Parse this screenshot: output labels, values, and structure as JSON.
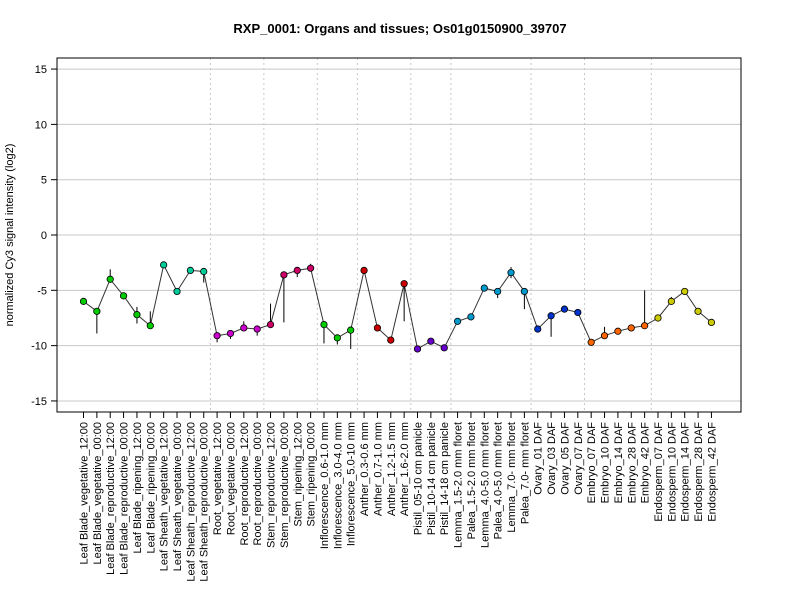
{
  "chart_data": {
    "type": "scatter",
    "title": "RXP_0001: Organs and tissues; Os01g0150900_39707",
    "ylabel": "normalized Cy3 signal intensity (log2)",
    "xlabel": "",
    "ylim": [
      -16,
      16
    ],
    "yticks": [
      -15,
      -10,
      -5,
      0,
      5,
      10,
      15
    ],
    "grid": true,
    "connected": true,
    "categories": [
      "Leaf Blade_vegetative_12:00",
      "Leaf Blade_vegetative_00:00",
      "Leaf Blade_reproductive_12:00",
      "Leaf Blade_reproductive_00:00",
      "Leaf Blade_ripening_12:00",
      "Leaf Blade_ripening_00:00",
      "Leaf Sheath_vegetative_12:00",
      "Leaf Sheath_vegetative_00:00",
      "Leaf Sheath_reproductive_12:00",
      "Leaf Sheath_reproductive_00:00",
      "Root_vegetative_12:00",
      "Root_vegetative_00:00",
      "Root_reproductive_12:00",
      "Root_reproductive_00:00",
      "Stem_reproductive_12:00",
      "Stem_reproductive_00:00",
      "Stem_ripening_12:00",
      "Stem_ripening_00:00",
      "Inflorescence_0.6-1.0 mm",
      "Inflorescence_3.0-4.0 mm",
      "Inflorescence_5.0-10 mm",
      "Anther_0.3-0.6 mm",
      "Anther_0.7-1.0 mm",
      "Anther_1.2-1.5 mm",
      "Anther_1.6-2.0 mm",
      "Pistil_05-10 cm panicle",
      "Pistil_10-14 cm panicle",
      "Pistil_14-18 cm panicle",
      "Lemma_1.5-2.0 mm floret",
      "Palea_1.5-2.0 mm floret",
      "Lemma_4.0-5.0 mm floret",
      "Palea_4.0-5.0 mm floret",
      "Lemma_7.0- mm floret",
      "Palea_7.0- mm floret",
      "Ovary_01 DAF",
      "Ovary_03 DAF",
      "Ovary_05 DAF",
      "Ovary_07 DAF",
      "Embryo_07 DAF",
      "Embryo_10 DAF",
      "Embryo_14 DAF",
      "Embryo_28 DAF",
      "Embryo_42 DAF",
      "Endosperm_07 DAF",
      "Endosperm_10 DAF",
      "Endosperm_14 DAF",
      "Endosperm_28 DAF",
      "Endosperm_42 DAF"
    ],
    "values": [
      -6.0,
      -6.9,
      -4.0,
      -5.5,
      -7.2,
      -8.2,
      -2.7,
      -5.1,
      -3.2,
      -3.3,
      -9.1,
      -8.9,
      -8.4,
      -8.5,
      -8.1,
      -3.6,
      -3.2,
      -3.0,
      -8.1,
      -9.3,
      -8.6,
      -3.2,
      -8.4,
      -9.5,
      -4.4,
      -10.3,
      -9.6,
      -10.2,
      -7.8,
      -7.4,
      -4.8,
      -5.1,
      -3.4,
      -5.1,
      -8.5,
      -7.3,
      -6.7,
      -7.0,
      -9.7,
      -9.1,
      -8.7,
      -8.4,
      -8.2,
      -7.5,
      -6.0,
      -5.1,
      -6.9,
      -7.9
    ],
    "error_low": [
      -6.0,
      -8.9,
      -4.0,
      -5.5,
      -8.0,
      -8.3,
      -2.7,
      -5.1,
      -3.2,
      -4.3,
      -9.7,
      -9.4,
      -8.4,
      -9.1,
      -8.1,
      -7.9,
      -3.8,
      -3.0,
      -9.8,
      -9.9,
      -10.3,
      -3.2,
      -8.4,
      -9.5,
      -7.8,
      -10.3,
      -9.6,
      -10.2,
      -7.8,
      -7.7,
      -4.8,
      -5.7,
      -3.9,
      -6.7,
      -8.5,
      -9.2,
      -6.7,
      -7.0,
      -9.7,
      -9.1,
      -8.7,
      -8.4,
      -8.2,
      -7.5,
      -6.0,
      -5.1,
      -6.9,
      -7.9
    ],
    "error_high": [
      -6.0,
      -6.9,
      -3.1,
      -5.5,
      -6.5,
      -6.9,
      -2.7,
      -5.1,
      -3.2,
      -3.3,
      -9.1,
      -8.9,
      -7.8,
      -8.5,
      -6.2,
      -3.6,
      -3.2,
      -2.6,
      -8.1,
      -9.3,
      -8.6,
      -3.2,
      -8.4,
      -9.5,
      -4.4,
      -10.3,
      -9.6,
      -10.2,
      -7.8,
      -7.4,
      -4.8,
      -5.1,
      -2.9,
      -5.1,
      -8.5,
      -7.3,
      -6.7,
      -7.0,
      -9.7,
      -8.3,
      -8.7,
      -8.4,
      -5.0,
      -7.5,
      -5.6,
      -5.1,
      -6.9,
      -7.9
    ],
    "colors": [
      "#00cc00",
      "#00cc00",
      "#00cc00",
      "#00cc00",
      "#00cc00",
      "#00cc00",
      "#00cc99",
      "#00cc99",
      "#00cc99",
      "#00cc99",
      "#cc00cc",
      "#cc00cc",
      "#cc00cc",
      "#cc00cc",
      "#cc0066",
      "#cc0066",
      "#cc0066",
      "#cc0066",
      "#00cc00",
      "#00cc00",
      "#00cc00",
      "#cc0000",
      "#cc0000",
      "#cc0000",
      "#cc0000",
      "#6600cc",
      "#6600cc",
      "#6600cc",
      "#0099cc",
      "#0099cc",
      "#0099cc",
      "#0099cc",
      "#0099cc",
      "#0099cc",
      "#0033cc",
      "#0033cc",
      "#0033cc",
      "#0033cc",
      "#ff6600",
      "#ff6600",
      "#ff6600",
      "#ff6600",
      "#ff6600",
      "#cccc00",
      "#cccc00",
      "#cccc00",
      "#cccc00",
      "#cccc00"
    ],
    "group_boundaries_after": [
      9,
      13,
      17,
      20,
      24,
      27,
      33,
      37,
      42
    ]
  }
}
